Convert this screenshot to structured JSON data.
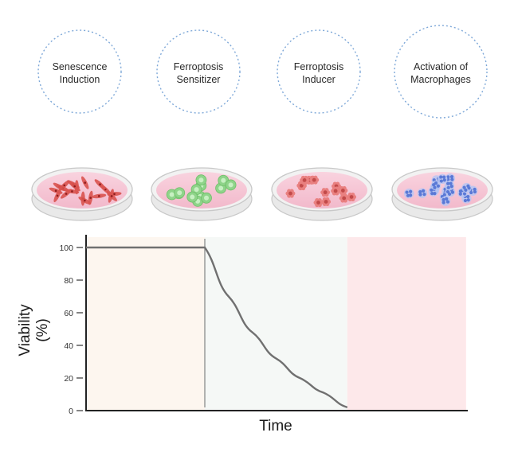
{
  "stages": [
    {
      "label_line1": "Senescence",
      "label_line2": "Induction",
      "cell_icon": "spindle-cell-icon",
      "cell_color": "#d9534f"
    },
    {
      "label_line1": "Ferroptosis",
      "label_line2": "Sensitizer",
      "cell_icon": "round-cell-icon",
      "cell_color": "#8fd48a"
    },
    {
      "label_line1": "Ferroptosis",
      "label_line2": "Inducer",
      "cell_icon": "ruptured-cell-icon",
      "cell_color": "#e98080"
    },
    {
      "label_line1": "Activation of",
      "label_line2": "Macrophages",
      "cell_icon": "macrophage-icon",
      "cell_color": "#5a79d6"
    }
  ],
  "colors": {
    "circle_border": "#7ea8d8",
    "dish_medium": "#f7cad8",
    "dish_rim": "#c8c8c8",
    "curve": "#707070",
    "phase1_bg": "#fdf6ef",
    "phase2_bg": "#f5f8f6",
    "phase3_bg": "#fde8ea"
  },
  "chart_data": {
    "type": "line",
    "xlabel": "Time",
    "ylabel_line1": "Viability",
    "ylabel_line2": "(%)",
    "ylim": [
      0,
      100
    ],
    "yticks": [
      "0",
      "20",
      "40",
      "60",
      "80",
      "100"
    ],
    "grid": false,
    "series": [
      {
        "x": [
          0,
          1,
          1.2,
          1.4,
          1.6,
          1.8,
          2.0,
          2.2
        ],
        "y": [
          100,
          100,
          70,
          48,
          32,
          20,
          11,
          2
        ]
      }
    ],
    "phases": [
      {
        "start": 0,
        "end": 1
      },
      {
        "start": 1,
        "end": 2.2
      },
      {
        "start": 2.2,
        "end": 3.2
      }
    ]
  }
}
